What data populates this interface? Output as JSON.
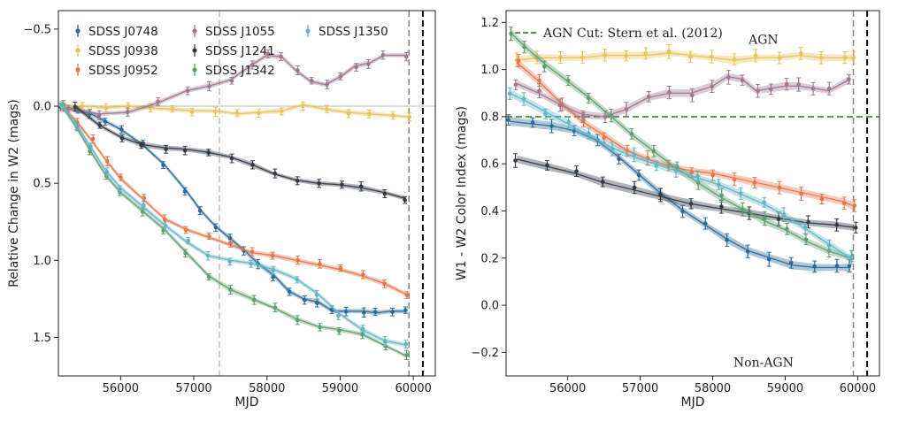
{
  "chart_data": [
    {
      "type": "line",
      "xlabel": "MJD",
      "ylabel": "Relative Change in W2 (mags)",
      "xlim": [
        55150,
        60300
      ],
      "ylim": [
        1.75,
        -0.62
      ],
      "y_inverted": true,
      "xticks": [
        56000,
        57000,
        58000,
        59000,
        60000
      ],
      "xtick_labels": [
        "56000",
        "57000",
        "58000",
        "59000",
        "60000"
      ],
      "yticks": [
        -0.5,
        0.0,
        0.5,
        1.0,
        1.5
      ],
      "ytick_labels": [
        "−0.5",
        "0.0",
        "0.5",
        "1.0",
        "1.5"
      ],
      "hlines": [
        0.0
      ],
      "vlines": [
        {
          "x": 57350,
          "style": "light-dashed"
        },
        {
          "x": 59940,
          "style": "dashed"
        },
        {
          "x": 60130,
          "style": "black-dashed"
        }
      ],
      "legend": {
        "placement": "top",
        "columns": 3,
        "entries": [
          "SDSS J0748",
          "SDSS J0938",
          "SDSS J0952",
          "SDSS J1055",
          "SDSS J1241",
          "SDSS J1342",
          "SDSS J1350"
        ]
      },
      "series": [
        {
          "name": "SDSS J0748",
          "color": "#2a6a98",
          "x": [
            55200,
            55400,
            55600,
            55800,
            56000,
            56300,
            56600,
            56900,
            57100,
            57300,
            57500,
            57700,
            57900,
            58100,
            58300,
            58500,
            58700,
            58900,
            59100,
            59300,
            59500,
            59700,
            59900
          ],
          "y": [
            0.0,
            0.02,
            0.05,
            0.1,
            0.15,
            0.25,
            0.38,
            0.55,
            0.68,
            0.78,
            0.86,
            0.94,
            1.03,
            1.1,
            1.2,
            1.25,
            1.27,
            1.33,
            1.33,
            1.33,
            1.34,
            1.33,
            1.33
          ]
        },
        {
          "name": "SDSS J0938",
          "color": "#e8c25a",
          "x": [
            55200,
            55500,
            55800,
            56100,
            56400,
            56700,
            57000,
            57300,
            57600,
            57900,
            58200,
            58500,
            58800,
            59100,
            59400,
            59700,
            59950
          ],
          "y": [
            0.0,
            0.0,
            0.01,
            0.0,
            0.01,
            0.02,
            0.03,
            0.03,
            0.05,
            0.04,
            0.03,
            -0.01,
            0.02,
            0.04,
            0.05,
            0.06,
            0.07
          ]
        },
        {
          "name": "SDSS J0952",
          "color": "#e7744b",
          "x": [
            55200,
            55400,
            55600,
            55800,
            56000,
            56300,
            56600,
            56900,
            57200,
            57500,
            57800,
            58100,
            58400,
            58700,
            59000,
            59300,
            59600,
            59900
          ],
          "y": [
            0.0,
            0.1,
            0.22,
            0.35,
            0.47,
            0.6,
            0.73,
            0.8,
            0.85,
            0.9,
            0.95,
            0.97,
            1.0,
            1.03,
            1.06,
            1.1,
            1.15,
            1.22
          ]
        },
        {
          "name": "SDSS J1055",
          "color": "#a07790",
          "x": [
            55300,
            55700,
            56100,
            56500,
            56900,
            57200,
            57500,
            57800,
            58000,
            58200,
            58400,
            58600,
            58800,
            59000,
            59200,
            59400,
            59600,
            59900
          ],
          "y": [
            0.02,
            0.05,
            0.04,
            -0.02,
            -0.1,
            -0.13,
            -0.17,
            -0.27,
            -0.33,
            -0.32,
            -0.23,
            -0.16,
            -0.14,
            -0.19,
            -0.26,
            -0.28,
            -0.33,
            -0.33
          ]
        },
        {
          "name": "SDSS J1241",
          "color": "#333a44",
          "x": [
            55400,
            55700,
            56000,
            56300,
            56600,
            56900,
            57200,
            57500,
            57800,
            58100,
            58400,
            58700,
            59000,
            59300,
            59600,
            59900
          ],
          "y": [
            0.01,
            0.12,
            0.2,
            0.25,
            0.27,
            0.28,
            0.3,
            0.33,
            0.38,
            0.44,
            0.48,
            0.5,
            0.51,
            0.53,
            0.56,
            0.6
          ]
        },
        {
          "name": "SDSS J1342",
          "color": "#5f9e6e",
          "x": [
            55200,
            55400,
            55600,
            55800,
            56000,
            56300,
            56600,
            56900,
            57200,
            57500,
            57800,
            58100,
            58400,
            58700,
            59000,
            59300,
            59600,
            59900
          ],
          "y": [
            0.0,
            0.14,
            0.3,
            0.45,
            0.56,
            0.68,
            0.8,
            0.95,
            1.1,
            1.19,
            1.25,
            1.31,
            1.38,
            1.43,
            1.45,
            1.48,
            1.55,
            1.62
          ]
        },
        {
          "name": "SDSS J1350",
          "color": "#63b5c4",
          "x": [
            55200,
            55400,
            55600,
            55800,
            56000,
            56300,
            56600,
            56900,
            57200,
            57500,
            57800,
            58100,
            58400,
            58700,
            59000,
            59300,
            59600,
            59900
          ],
          "y": [
            0.0,
            0.12,
            0.27,
            0.42,
            0.53,
            0.65,
            0.77,
            0.88,
            0.97,
            1.0,
            1.02,
            1.06,
            1.12,
            1.22,
            1.35,
            1.45,
            1.52,
            1.55
          ]
        }
      ]
    },
    {
      "type": "line",
      "xlabel": "MJD",
      "ylabel": "W1 - W2 Color Index (mags)",
      "xlim": [
        55150,
        60300
      ],
      "ylim": [
        -0.3,
        1.25
      ],
      "xticks": [
        56000,
        57000,
        58000,
        59000,
        60000
      ],
      "xtick_labels": [
        "56000",
        "57000",
        "58000",
        "59000",
        "60000"
      ],
      "yticks": [
        -0.2,
        0.0,
        0.2,
        0.4,
        0.6,
        0.8,
        1.0,
        1.2
      ],
      "ytick_labels": [
        "−0.2",
        "0.0",
        "0.2",
        "0.4",
        "0.6",
        "0.8",
        "1.0",
        "1.2"
      ],
      "hline": {
        "y": 0.8,
        "color": "#3a8a2e",
        "label": "AGN Cut: Stern et al. (2012)"
      },
      "vlines": [
        {
          "x": 59940,
          "style": "dashed"
        },
        {
          "x": 60130,
          "style": "black-dashed"
        }
      ],
      "annotations": [
        {
          "text": "AGN",
          "x": 58700,
          "y": 1.11
        },
        {
          "text": "Non-AGN",
          "x": 58700,
          "y": -0.26
        }
      ],
      "series": [
        {
          "name": "SDSS J0748",
          "color": "#2a6a98",
          "x": [
            55200,
            55500,
            55800,
            56100,
            56400,
            56700,
            57000,
            57300,
            57600,
            57900,
            58200,
            58500,
            58800,
            59100,
            59400,
            59700,
            59900
          ],
          "y": [
            0.78,
            0.77,
            0.76,
            0.74,
            0.7,
            0.63,
            0.55,
            0.47,
            0.4,
            0.34,
            0.28,
            0.23,
            0.2,
            0.17,
            0.16,
            0.16,
            0.16
          ]
        },
        {
          "name": "SDSS J0938",
          "color": "#e8c25a",
          "x": [
            55300,
            55600,
            55900,
            56200,
            56500,
            56800,
            57100,
            57400,
            57700,
            58000,
            58300,
            58600,
            58900,
            59200,
            59500,
            59800,
            59950
          ],
          "y": [
            1.04,
            1.05,
            1.05,
            1.05,
            1.06,
            1.06,
            1.06,
            1.07,
            1.06,
            1.05,
            1.04,
            1.05,
            1.05,
            1.06,
            1.05,
            1.05,
            1.05
          ]
        },
        {
          "name": "SDSS J0952",
          "color": "#e7744b",
          "x": [
            55300,
            55600,
            55900,
            56200,
            56500,
            56800,
            57100,
            57400,
            57700,
            58000,
            58300,
            58600,
            58900,
            59200,
            59500,
            59800,
            59950
          ],
          "y": [
            1.03,
            0.95,
            0.86,
            0.78,
            0.72,
            0.66,
            0.62,
            0.59,
            0.57,
            0.56,
            0.54,
            0.52,
            0.5,
            0.48,
            0.46,
            0.44,
            0.42
          ]
        },
        {
          "name": "SDSS J1055",
          "color": "#a07790",
          "x": [
            55300,
            55600,
            55900,
            56200,
            56500,
            56800,
            57100,
            57400,
            57700,
            58000,
            58200,
            58400,
            58600,
            58800,
            59000,
            59200,
            59400,
            59600,
            59900
          ],
          "y": [
            0.94,
            0.9,
            0.85,
            0.81,
            0.8,
            0.83,
            0.88,
            0.9,
            0.9,
            0.93,
            0.97,
            0.96,
            0.91,
            0.92,
            0.93,
            0.93,
            0.92,
            0.91,
            0.96
          ]
        },
        {
          "name": "SDSS J1241",
          "color": "#333a44",
          "x": [
            55300,
            55700,
            56100,
            56500,
            56900,
            57300,
            57700,
            58100,
            58500,
            58900,
            59300,
            59700,
            59950
          ],
          "y": [
            0.62,
            0.59,
            0.56,
            0.52,
            0.49,
            0.46,
            0.43,
            0.41,
            0.39,
            0.37,
            0.35,
            0.34,
            0.33
          ]
        },
        {
          "name": "SDSS J1342",
          "color": "#5f9e6e",
          "x": [
            55200,
            55400,
            55700,
            56000,
            56300,
            56600,
            56900,
            57200,
            57500,
            57800,
            58100,
            58400,
            58700,
            59000,
            59300,
            59600,
            59900
          ],
          "y": [
            1.16,
            1.1,
            1.02,
            0.95,
            0.88,
            0.8,
            0.72,
            0.65,
            0.58,
            0.52,
            0.46,
            0.41,
            0.36,
            0.32,
            0.27,
            0.23,
            0.2
          ]
        },
        {
          "name": "SDSS J1350",
          "color": "#63b5c4",
          "x": [
            55200,
            55400,
            55700,
            56000,
            56300,
            56600,
            56900,
            57200,
            57500,
            57800,
            58100,
            58400,
            58700,
            59000,
            59300,
            59600,
            59900
          ],
          "y": [
            0.9,
            0.87,
            0.82,
            0.77,
            0.72,
            0.67,
            0.63,
            0.6,
            0.57,
            0.54,
            0.51,
            0.47,
            0.43,
            0.38,
            0.32,
            0.26,
            0.2
          ]
        }
      ]
    }
  ]
}
